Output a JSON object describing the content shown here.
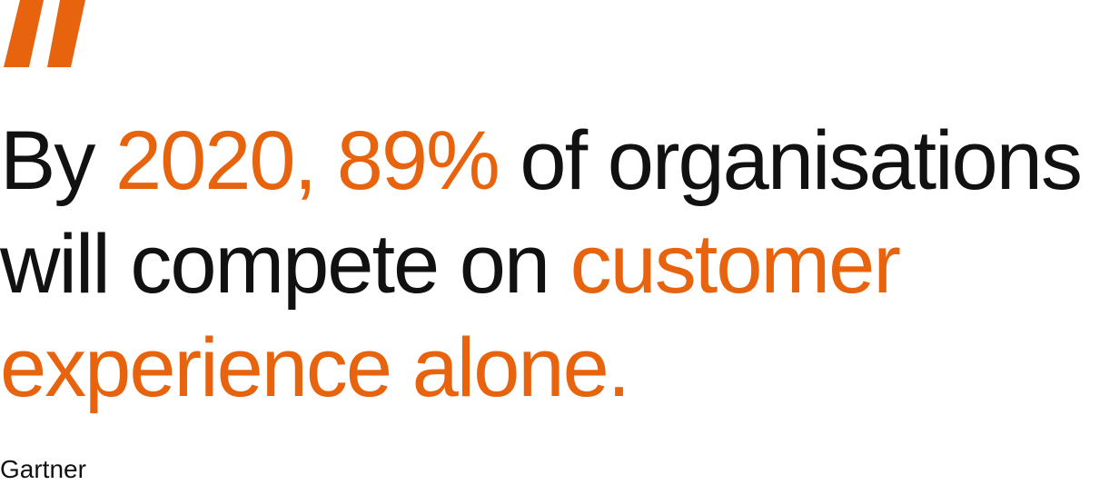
{
  "colors": {
    "accent": "#e8630d",
    "text": "#111111",
    "background": "#ffffff"
  },
  "quote_icon": "quotation-mark-icon",
  "quote": {
    "line1": {
      "part1": "By",
      "part2": "2020, 89%",
      "part3": "of organisations"
    },
    "line2": {
      "part1": "will compete on",
      "part2": "customer"
    },
    "line3": {
      "part1": "experience alone."
    }
  },
  "source": "Gartner"
}
